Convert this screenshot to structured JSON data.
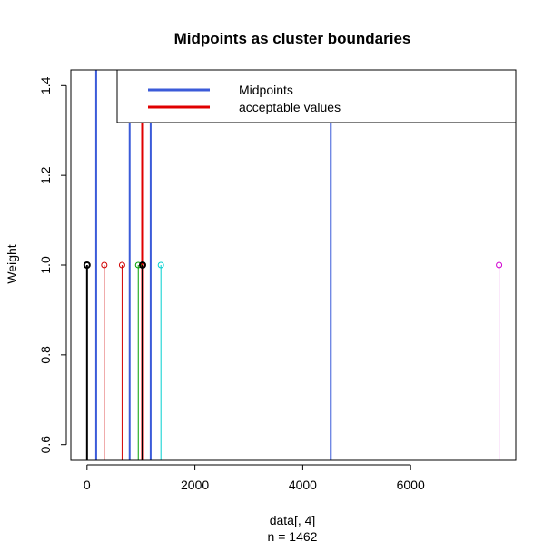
{
  "chart_data": {
    "type": "scatter",
    "title": "Midpoints as cluster boundaries",
    "xlabel": "data[, 4]",
    "sublabel": "n = 1462",
    "ylabel": "Weight",
    "xlim": [
      -300,
      7950
    ],
    "ylim": [
      0.565,
      1.435
    ],
    "x_ticks": [
      0,
      2000,
      4000,
      6000
    ],
    "y_ticks": [
      0.6,
      0.8,
      1.0,
      1.2,
      1.4
    ],
    "grid": false,
    "legend": {
      "placement": "top-right",
      "entries": [
        {
          "label": "Midpoints",
          "color": "#3b5bd9"
        },
        {
          "label": "acceptable values",
          "color": "#e00000"
        }
      ]
    },
    "midpoint_lines": {
      "color": "#3b5bd9",
      "x": [
        170,
        790,
        1180,
        4520
      ]
    },
    "acceptable_lines": {
      "color": "#e00000",
      "x": [
        1030
      ]
    },
    "points": [
      {
        "x": 0,
        "y": 1.0,
        "color": "#000000"
      },
      {
        "x": 320,
        "y": 1.0,
        "color": "#d00000"
      },
      {
        "x": 650,
        "y": 1.0,
        "color": "#d00000"
      },
      {
        "x": 950,
        "y": 1.0,
        "color": "#00a000"
      },
      {
        "x": 1030,
        "y": 1.0,
        "color": "#000000"
      },
      {
        "x": 1370,
        "y": 1.0,
        "color": "#00d0d0"
      },
      {
        "x": 7640,
        "y": 1.0,
        "color": "#d000d0"
      }
    ]
  }
}
